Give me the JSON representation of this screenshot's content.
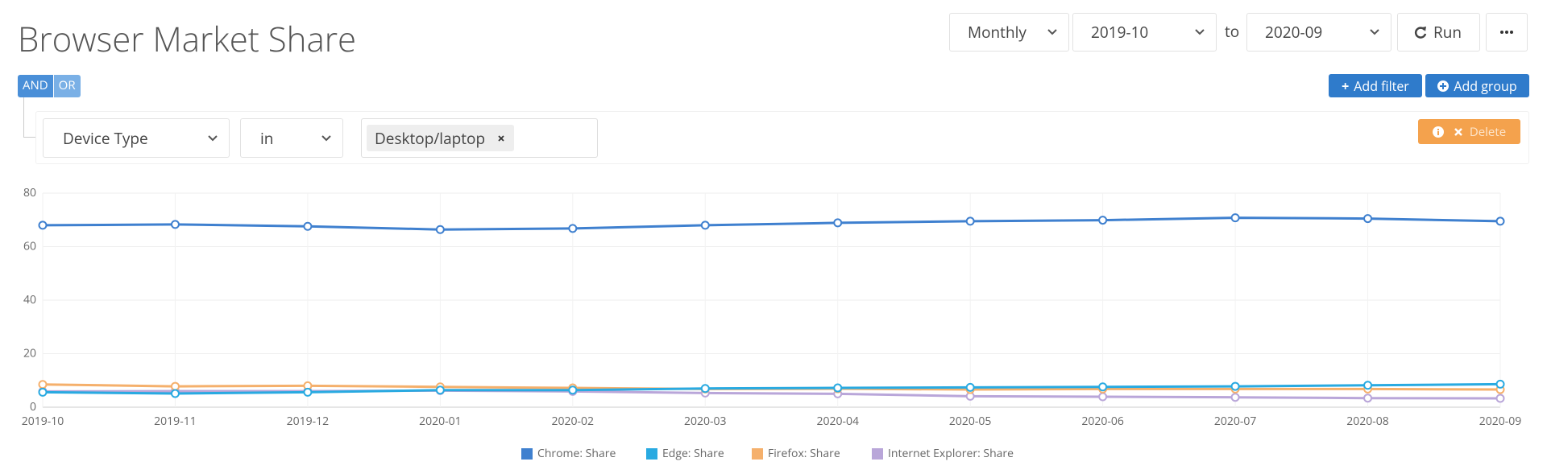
{
  "header": {
    "title": "Browser Market Share",
    "interval": "Monthly",
    "from": "2019-10",
    "to_label": "to",
    "to": "2020-09",
    "run": "Run"
  },
  "filter": {
    "and": "AND",
    "or": "OR",
    "add_filter": "Add filter",
    "add_group": "Add group",
    "field": "Device Type",
    "operator": "in",
    "value": "Desktop/laptop",
    "delete": "Delete"
  },
  "chart_data": {
    "type": "line",
    "categories": [
      "2019-10",
      "2019-11",
      "2019-12",
      "2020-01",
      "2020-02",
      "2020-03",
      "2020-04",
      "2020-05",
      "2020-06",
      "2020-07",
      "2020-08",
      "2020-09"
    ],
    "series": [
      {
        "name": "Chrome: Share",
        "color": "#3f80cf",
        "values": [
          68,
          68.3,
          67.6,
          66.4,
          66.8,
          68,
          68.9,
          69.5,
          69.9,
          70.8,
          70.5,
          69.5
        ]
      },
      {
        "name": "Edge: Share",
        "color": "#29aae1",
        "values": [
          5.6,
          5.1,
          5.6,
          6.4,
          6.4,
          7.0,
          7.2,
          7.4,
          7.6,
          7.8,
          8.2,
          8.6
        ]
      },
      {
        "name": "Firefox: Share",
        "color": "#f5b06c",
        "values": [
          8.5,
          7.8,
          8.0,
          7.6,
          7.2,
          6.8,
          6.9,
          6.6,
          6.8,
          6.8,
          6.8,
          6.6
        ]
      },
      {
        "name": "Internet Explorer: Share",
        "color": "#b9a6d9",
        "values": [
          5.9,
          6.0,
          6.0,
          6.2,
          5.9,
          5.3,
          5.0,
          4.1,
          3.9,
          3.7,
          3.4,
          3.3
        ]
      }
    ],
    "ylim": [
      0,
      80
    ],
    "yticks": [
      0,
      20,
      40,
      60,
      80
    ],
    "grid": true,
    "legend": "bottom"
  }
}
